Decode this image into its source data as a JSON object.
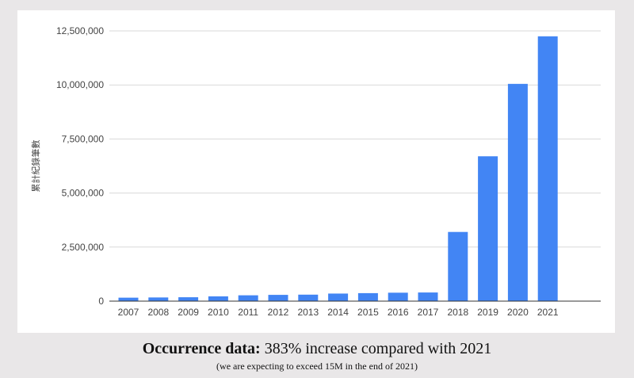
{
  "chart_data": {
    "type": "bar",
    "categories": [
      "2007",
      "2008",
      "2009",
      "2010",
      "2011",
      "2012",
      "2013",
      "2014",
      "2015",
      "2016",
      "2017",
      "2018",
      "2019",
      "2020",
      "2021"
    ],
    "values": [
      160000,
      170000,
      180000,
      220000,
      270000,
      290000,
      300000,
      350000,
      370000,
      390000,
      400000,
      3200000,
      6700000,
      10050000,
      12250000
    ],
    "ylabel": "累計紀錄筆數",
    "ylim": [
      0,
      12500000
    ],
    "yticks": [
      0,
      2500000,
      5000000,
      7500000,
      10000000,
      12500000
    ],
    "ytick_labels": [
      "0",
      "2,500,000",
      "5,000,000",
      "7,500,000",
      "10,000,000",
      "12,500,000"
    ],
    "grid": true,
    "bar_color": "#4285f4",
    "grid_color": "#d9d9d9",
    "axis_color": "#333333"
  },
  "caption": {
    "bold": "Occurrence data:",
    "main": " 383% increase compared with 2021",
    "sub": "(we are expecting to exceed 15M in the end of 2021)"
  }
}
